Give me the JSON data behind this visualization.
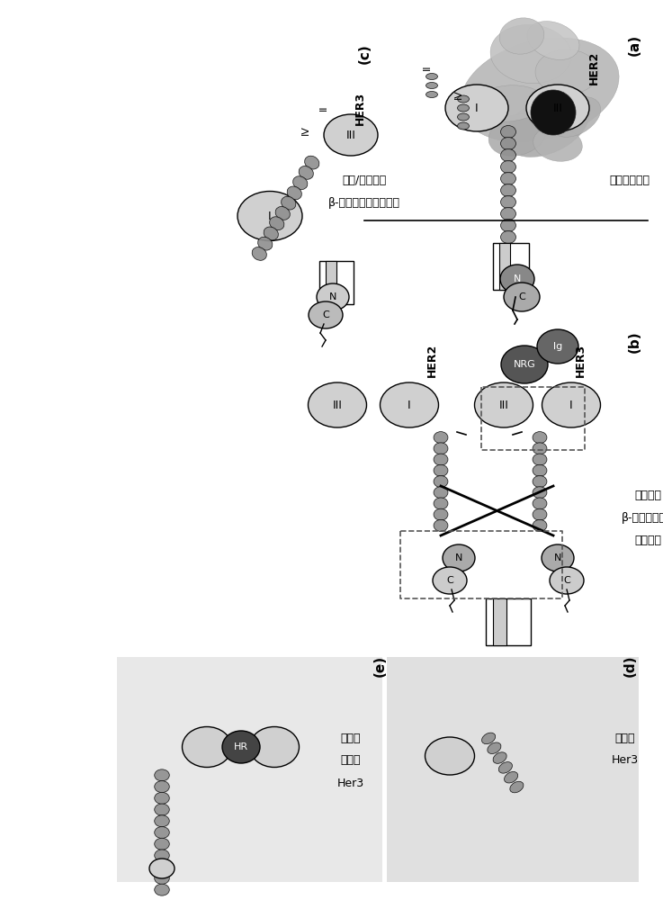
{
  "bg_color": "#ffffff",
  "light_gray": "#d0d0d0",
  "medium_gray": "#a0a0a0",
  "dark_gray": "#555555",
  "helix_color": "#909090",
  "panel_bg_d": "#e0e0e0",
  "panel_bg_e": "#e8e8e8",
  "panel_a_label": "(a)",
  "panel_b_label": "(b)",
  "panel_c_label": "(c)",
  "panel_d_label": "(d)",
  "panel_a_title": "组成性有活性",
  "panel_b_title_line1": "活化构象",
  "panel_b_title_line2": "β-发夹（红色）",
  "panel_b_title_line3": "异二聚化",
  "panel_c_title_line1": "闭合/锁定构象",
  "panel_c_title_line2": "β-发夹（红色）被覆盖",
  "panel_d_closed_line1": "闭合的",
  "panel_d_closed_line2": "Her3",
  "panel_e_label_line1": "调蛋白",
  "panel_e_label_line2": "活化的",
  "panel_e_label_line3": "Her3",
  "her2_label": "HER2",
  "her3_label": "HER3"
}
